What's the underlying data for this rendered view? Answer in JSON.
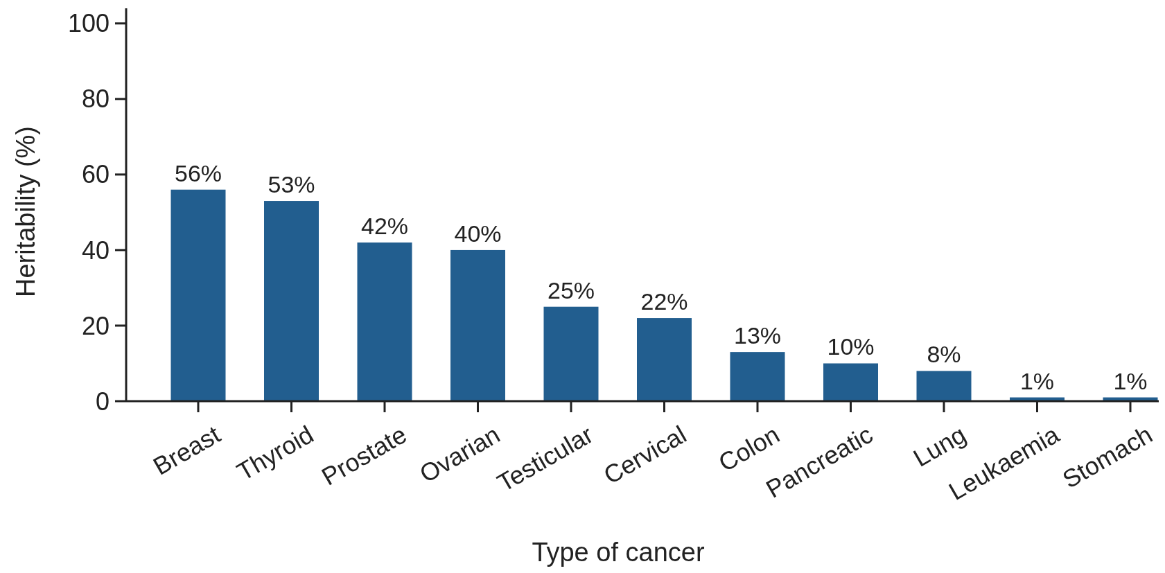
{
  "chart_data": {
    "type": "bar",
    "xlabel": "Type of cancer",
    "ylabel": "Heritability (%)",
    "categories": [
      "Breast",
      "Thyroid",
      "Prostate",
      "Ovarian",
      "Testicular",
      "Cervical",
      "Colon",
      "Pancreatic",
      "Lung",
      "Leukaemia",
      "Stomach"
    ],
    "values": [
      56,
      53,
      42,
      40,
      25,
      22,
      13,
      10,
      8,
      1,
      1
    ],
    "value_labels": [
      "56%",
      "53%",
      "42%",
      "40%",
      "25%",
      "22%",
      "13%",
      "10%",
      "8%",
      "1%",
      "1%"
    ],
    "color": "#225e8f",
    "ylim": [
      0,
      104
    ],
    "yticks": [
      0,
      20,
      40,
      60,
      80,
      100
    ],
    "grid": false
  }
}
